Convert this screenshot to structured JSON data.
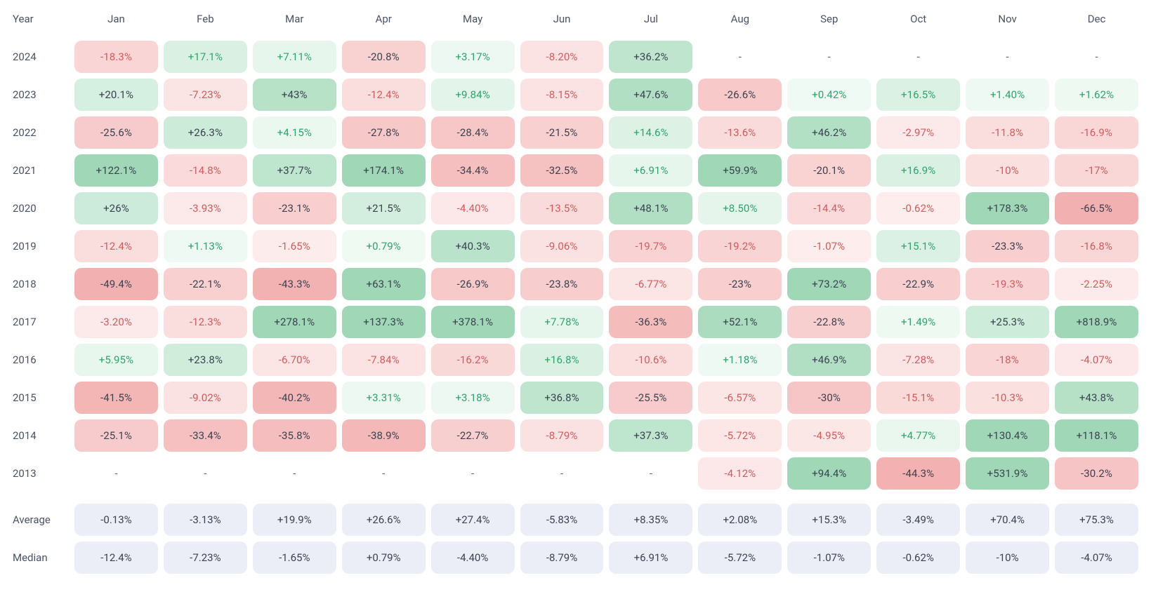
{
  "type": "heatmap-table",
  "header": {
    "year_label": "Year",
    "months": [
      "Jan",
      "Feb",
      "Mar",
      "Apr",
      "May",
      "Jun",
      "Jul",
      "Aug",
      "Sep",
      "Oct",
      "Nov",
      "Dec"
    ]
  },
  "colors": {
    "background": "#ffffff",
    "text_default": "#3b4252",
    "header_text": "#495366",
    "summary_bg": "#eceef7",
    "missing_text": "#5a6273",
    "pos_max_bg": "#a0d8b7",
    "pos_min_bg": "#f0faf4",
    "neg_max_bg": "#f3b0b0",
    "neg_min_bg": "#fdeeee",
    "pos_text_threshold": 20,
    "pos_light_text": "#2aa66a",
    "neg_text_threshold": 20,
    "neg_light_text": "#d65a5a",
    "dark_text": "#3b4252"
  },
  "scale": {
    "positive_saturation_at": 60,
    "negative_saturation_at": 45
  },
  "years": [
    {
      "year": "2024",
      "values": [
        -18.3,
        17.1,
        7.11,
        -20.8,
        3.17,
        -8.2,
        36.2,
        null,
        null,
        null,
        null,
        null
      ]
    },
    {
      "year": "2023",
      "values": [
        20.1,
        -7.23,
        43,
        -12.4,
        9.84,
        -8.15,
        47.6,
        -26.6,
        0.42,
        16.5,
        1.4,
        1.62
      ]
    },
    {
      "year": "2022",
      "values": [
        -25.6,
        26.3,
        4.15,
        -27.8,
        -28.4,
        -21.5,
        14.6,
        -13.6,
        46.2,
        -2.97,
        -11.8,
        -16.9
      ]
    },
    {
      "year": "2021",
      "values": [
        122.1,
        -14.8,
        37.7,
        174.1,
        -34.4,
        -32.5,
        6.91,
        59.9,
        -20.1,
        16.9,
        -10,
        -17
      ]
    },
    {
      "year": "2020",
      "values": [
        26,
        -3.93,
        -23.1,
        21.5,
        -4.4,
        -13.5,
        48.1,
        8.5,
        -14.4,
        -0.62,
        178.3,
        -66.5
      ]
    },
    {
      "year": "2019",
      "values": [
        -12.4,
        1.13,
        -1.65,
        0.79,
        40.3,
        -9.06,
        -19.7,
        -19.2,
        -1.07,
        15.1,
        -23.3,
        -16.8
      ]
    },
    {
      "year": "2018",
      "values": [
        -49.4,
        -22.1,
        -43.3,
        63.1,
        -26.9,
        -23.8,
        -6.77,
        -23,
        73.2,
        -22.9,
        -19.3,
        -2.25
      ]
    },
    {
      "year": "2017",
      "values": [
        -3.2,
        -12.3,
        278.1,
        137.3,
        378.1,
        7.78,
        -36.3,
        52.1,
        -22.8,
        1.49,
        25.3,
        818.9
      ]
    },
    {
      "year": "2016",
      "values": [
        5.95,
        23.8,
        -6.7,
        -7.84,
        -16.2,
        16.8,
        -10.6,
        1.18,
        46.9,
        -7.28,
        -18,
        -4.07
      ]
    },
    {
      "year": "2015",
      "values": [
        -41.5,
        -9.02,
        -40.2,
        3.31,
        3.18,
        36.8,
        -25.5,
        -6.57,
        -30,
        -15.1,
        -10.3,
        43.8
      ]
    },
    {
      "year": "2014",
      "values": [
        -25.1,
        -33.4,
        -35.8,
        -38.9,
        -22.7,
        -8.79,
        37.3,
        -5.72,
        -4.95,
        4.77,
        130.4,
        118.1
      ]
    },
    {
      "year": "2013",
      "values": [
        null,
        null,
        null,
        null,
        null,
        null,
        null,
        -4.12,
        94.4,
        -44.3,
        531.9,
        -30.2
      ]
    }
  ],
  "summary": [
    {
      "label": "Average",
      "values": [
        "-0.13%",
        "-3.13%",
        "+19.9%",
        "+26.6%",
        "+27.4%",
        "-5.83%",
        "+8.35%",
        "+2.08%",
        "+15.3%",
        "-3.49%",
        "+70.4%",
        "+75.3%"
      ]
    },
    {
      "label": "Median",
      "values": [
        "-12.4%",
        "-7.23%",
        "-1.65%",
        "+0.79%",
        "-4.40%",
        "-8.79%",
        "+6.91%",
        "-5.72%",
        "-1.07%",
        "-0.62%",
        "-10%",
        "-4.07%"
      ]
    }
  ],
  "missing_placeholder": "-",
  "decimals_rule": "two_below_10_else_one_trim"
}
